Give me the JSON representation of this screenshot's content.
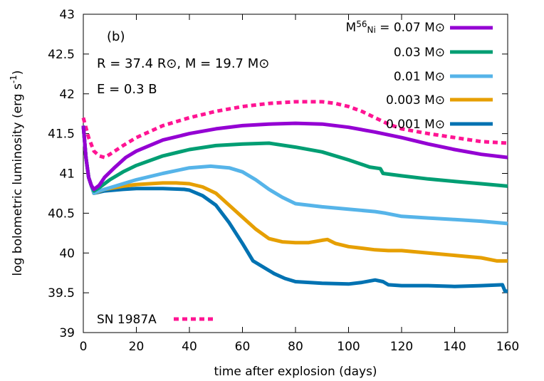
{
  "chart_data": {
    "type": "line",
    "xlabel": "time after explosion (days)",
    "ylabel": "log bolometric luminosity (erg s^-1)",
    "ylabel_main": "log bolometric luminosity (erg s",
    "ylabel_sup": "-1",
    "ylabel_tail": ")",
    "xlim": [
      0,
      160
    ],
    "ylim": [
      39,
      43
    ],
    "xticks": [
      "0",
      "20",
      "40",
      "60",
      "80",
      "100",
      "120",
      "140",
      "160"
    ],
    "yticks": [
      "39",
      "39.5",
      "40",
      "40.5",
      "41",
      "41.5",
      "42",
      "42.5",
      "43"
    ],
    "panel_label": "(b)",
    "params_line1": "R = 37.4 R⊙, M = 19.7 M⊙",
    "params_line2": "E = 0.3 B",
    "legend_title_prefix": "M",
    "legend_title_sub": "56",
    "legend_title_subsub": "Ni",
    "legend_title_value": " = 0.07 M⊙",
    "grid": false,
    "legend_position": "top-right",
    "series": [
      {
        "name": "0.07 M⊙",
        "color": "#9400d3",
        "points": [
          [
            0,
            41.6
          ],
          [
            1,
            41.2
          ],
          [
            2,
            40.95
          ],
          [
            3,
            40.85
          ],
          [
            4,
            40.8
          ],
          [
            6,
            40.85
          ],
          [
            8,
            40.95
          ],
          [
            12,
            41.08
          ],
          [
            16,
            41.2
          ],
          [
            20,
            41.28
          ],
          [
            30,
            41.42
          ],
          [
            40,
            41.5
          ],
          [
            50,
            41.56
          ],
          [
            60,
            41.6
          ],
          [
            70,
            41.62
          ],
          [
            80,
            41.63
          ],
          [
            90,
            41.62
          ],
          [
            100,
            41.58
          ],
          [
            110,
            41.52
          ],
          [
            120,
            41.45
          ],
          [
            130,
            41.37
          ],
          [
            140,
            41.3
          ],
          [
            150,
            41.24
          ],
          [
            160,
            41.2
          ]
        ]
      },
      {
        "name": "0.03 M⊙",
        "color": "#009e73",
        "points": [
          [
            0,
            41.6
          ],
          [
            1,
            41.2
          ],
          [
            2,
            40.95
          ],
          [
            3,
            40.85
          ],
          [
            4,
            40.78
          ],
          [
            6,
            40.82
          ],
          [
            10,
            40.92
          ],
          [
            15,
            41.02
          ],
          [
            20,
            41.1
          ],
          [
            30,
            41.22
          ],
          [
            40,
            41.3
          ],
          [
            50,
            41.35
          ],
          [
            60,
            41.37
          ],
          [
            70,
            41.38
          ],
          [
            80,
            41.33
          ],
          [
            90,
            41.27
          ],
          [
            100,
            41.17
          ],
          [
            108,
            41.08
          ],
          [
            112,
            41.06
          ],
          [
            113,
            41.0
          ],
          [
            120,
            40.97
          ],
          [
            130,
            40.93
          ],
          [
            140,
            40.9
          ],
          [
            150,
            40.87
          ],
          [
            160,
            40.84
          ]
        ]
      },
      {
        "name": "0.01 M⊙",
        "color": "#56b4e9",
        "points": [
          [
            0,
            41.6
          ],
          [
            1,
            41.2
          ],
          [
            2,
            40.95
          ],
          [
            3,
            40.85
          ],
          [
            4,
            40.75
          ],
          [
            6,
            40.78
          ],
          [
            10,
            40.82
          ],
          [
            15,
            40.87
          ],
          [
            20,
            40.92
          ],
          [
            30,
            41.0
          ],
          [
            40,
            41.07
          ],
          [
            48,
            41.09
          ],
          [
            55,
            41.07
          ],
          [
            60,
            41.02
          ],
          [
            65,
            40.92
          ],
          [
            70,
            40.8
          ],
          [
            75,
            40.7
          ],
          [
            80,
            40.62
          ],
          [
            90,
            40.58
          ],
          [
            100,
            40.55
          ],
          [
            110,
            40.52
          ],
          [
            114,
            40.5
          ],
          [
            120,
            40.46
          ],
          [
            130,
            40.44
          ],
          [
            140,
            40.42
          ],
          [
            150,
            40.4
          ],
          [
            160,
            40.37
          ]
        ]
      },
      {
        "name": "0.003 M⊙",
        "color": "#e69f00",
        "points": [
          [
            0,
            41.6
          ],
          [
            1,
            41.2
          ],
          [
            2,
            40.95
          ],
          [
            3,
            40.85
          ],
          [
            4,
            40.75
          ],
          [
            8,
            40.8
          ],
          [
            15,
            40.84
          ],
          [
            20,
            40.86
          ],
          [
            30,
            40.88
          ],
          [
            35,
            40.88
          ],
          [
            40,
            40.87
          ],
          [
            45,
            40.83
          ],
          [
            50,
            40.75
          ],
          [
            55,
            40.6
          ],
          [
            60,
            40.45
          ],
          [
            65,
            40.3
          ],
          [
            70,
            40.18
          ],
          [
            75,
            40.14
          ],
          [
            80,
            40.13
          ],
          [
            85,
            40.13
          ],
          [
            90,
            40.16
          ],
          [
            92,
            40.17
          ],
          [
            95,
            40.12
          ],
          [
            100,
            40.08
          ],
          [
            105,
            40.06
          ],
          [
            110,
            40.04
          ],
          [
            115,
            40.03
          ],
          [
            120,
            40.03
          ],
          [
            130,
            40.0
          ],
          [
            140,
            39.97
          ],
          [
            150,
            39.94
          ],
          [
            156,
            39.9
          ],
          [
            160,
            39.9
          ]
        ]
      },
      {
        "name": "0.001 M⊙",
        "color": "#0072b2",
        "points": [
          [
            0,
            41.6
          ],
          [
            1,
            41.2
          ],
          [
            2,
            40.95
          ],
          [
            3,
            40.85
          ],
          [
            4,
            40.75
          ],
          [
            8,
            40.78
          ],
          [
            15,
            40.8
          ],
          [
            20,
            40.81
          ],
          [
            30,
            40.81
          ],
          [
            38,
            40.8
          ],
          [
            40,
            40.79
          ],
          [
            45,
            40.72
          ],
          [
            50,
            40.6
          ],
          [
            55,
            40.38
          ],
          [
            60,
            40.12
          ],
          [
            64,
            39.9
          ],
          [
            68,
            39.82
          ],
          [
            72,
            39.74
          ],
          [
            76,
            39.68
          ],
          [
            80,
            39.64
          ],
          [
            90,
            39.62
          ],
          [
            100,
            39.61
          ],
          [
            105,
            39.63
          ],
          [
            110,
            39.66
          ],
          [
            113,
            39.64
          ],
          [
            115,
            39.6
          ],
          [
            120,
            39.59
          ],
          [
            130,
            39.59
          ],
          [
            140,
            39.58
          ],
          [
            150,
            39.59
          ],
          [
            158,
            39.6
          ],
          [
            159,
            39.52
          ],
          [
            160,
            39.52
          ]
        ]
      },
      {
        "name": "SN 1987A",
        "color": "#ff1493",
        "dashed": true,
        "points": [
          [
            0,
            41.7
          ],
          [
            2,
            41.45
          ],
          [
            4,
            41.28
          ],
          [
            6,
            41.22
          ],
          [
            8,
            41.2
          ],
          [
            10,
            41.24
          ],
          [
            15,
            41.35
          ],
          [
            20,
            41.45
          ],
          [
            30,
            41.6
          ],
          [
            40,
            41.7
          ],
          [
            50,
            41.78
          ],
          [
            60,
            41.84
          ],
          [
            70,
            41.88
          ],
          [
            80,
            41.9
          ],
          [
            90,
            41.9
          ],
          [
            95,
            41.88
          ],
          [
            100,
            41.84
          ],
          [
            105,
            41.78
          ],
          [
            110,
            41.7
          ],
          [
            115,
            41.62
          ],
          [
            120,
            41.56
          ],
          [
            130,
            41.5
          ],
          [
            140,
            41.45
          ],
          [
            150,
            41.4
          ],
          [
            160,
            41.38
          ]
        ]
      }
    ]
  }
}
